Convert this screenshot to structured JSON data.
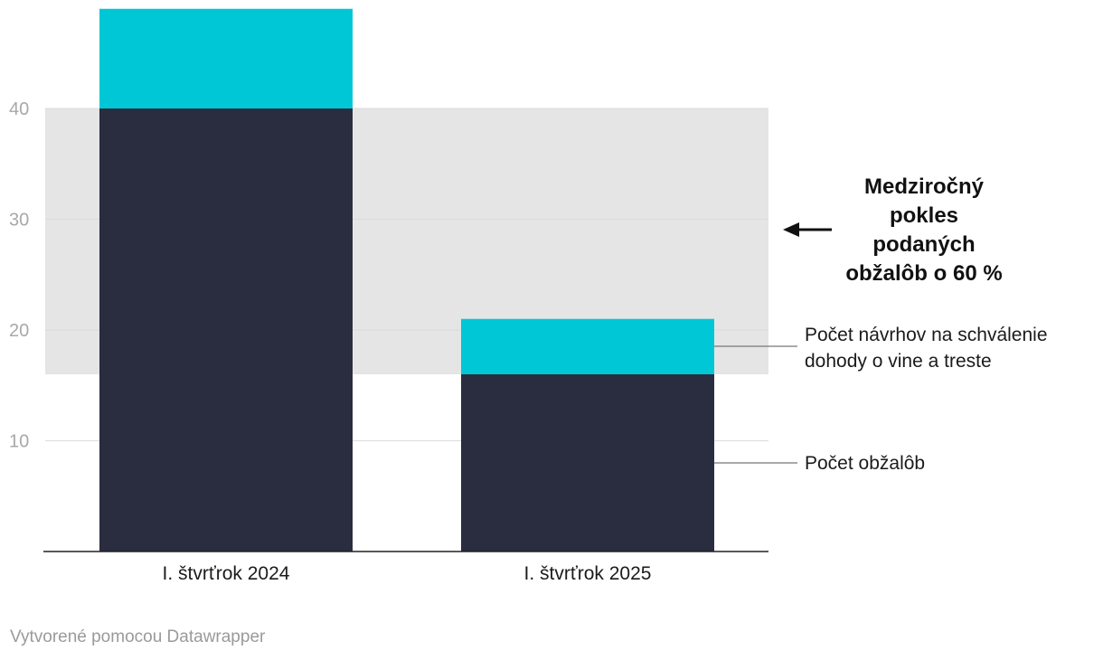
{
  "chart_data": {
    "type": "bar",
    "stacked": true,
    "categories": [
      "I. štvrťrok 2024",
      "I. štvrťrok 2025"
    ],
    "series": [
      {
        "name": "Počet obžalôb",
        "values": [
          40,
          16
        ],
        "color": "#292d3f"
      },
      {
        "name": "Počet návrhov na schválenie dohody o vine a treste",
        "values": [
          9,
          5
        ],
        "color": "#00c7d5"
      }
    ],
    "legend_lines": [
      [
        "Počet obžalôb"
      ],
      [
        "Počet návrhov na schválenie",
        "dohody o vine a treste"
      ]
    ],
    "yticks": [
      10,
      20,
      30,
      40
    ],
    "ylim": [
      0,
      50
    ],
    "grid": true,
    "highlight_band": {
      "from": 16,
      "to": 40,
      "color": "#e5e5e5"
    },
    "annotation": {
      "lines": [
        "Medziročný",
        "pokles",
        "podaných",
        "obžalôb o 60 %"
      ]
    },
    "xlabel": "",
    "ylabel": ""
  },
  "footer": "Vytvorené pomocou Datawrapper"
}
